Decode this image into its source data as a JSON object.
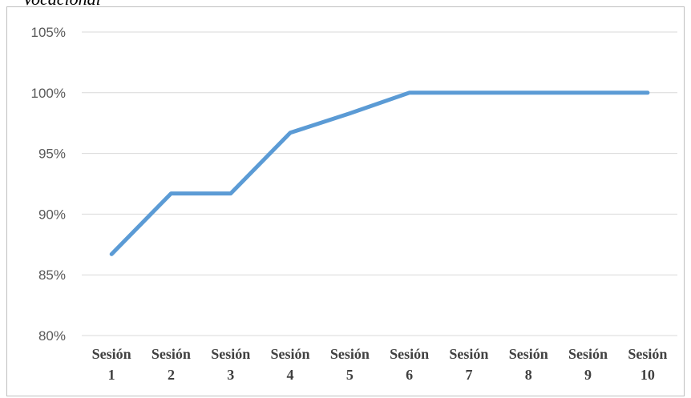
{
  "chart_data": {
    "type": "line",
    "title": "Vocacional",
    "xlabel": "",
    "ylabel": "",
    "categories": [
      [
        "Sesión",
        "1"
      ],
      [
        "Sesión",
        "2"
      ],
      [
        "Sesión",
        "3"
      ],
      [
        "Sesión",
        "4"
      ],
      [
        "Sesión",
        "5"
      ],
      [
        "Sesión",
        "6"
      ],
      [
        "Sesión",
        "7"
      ],
      [
        "Sesión",
        "8"
      ],
      [
        "Sesión",
        "9"
      ],
      [
        "Sesión",
        "10"
      ]
    ],
    "values": [
      86.7,
      91.7,
      91.7,
      96.7,
      98.3,
      100,
      100,
      100,
      100,
      100
    ],
    "ylim": [
      80,
      105
    ],
    "yticks": [
      "80%",
      "85%",
      "90%",
      "95%",
      "100%",
      "105%"
    ],
    "grid": true,
    "legend": "none",
    "line_color": "#5b9bd5",
    "grid_color": "#d9d9d9",
    "border_color": "#bfbfbf"
  }
}
